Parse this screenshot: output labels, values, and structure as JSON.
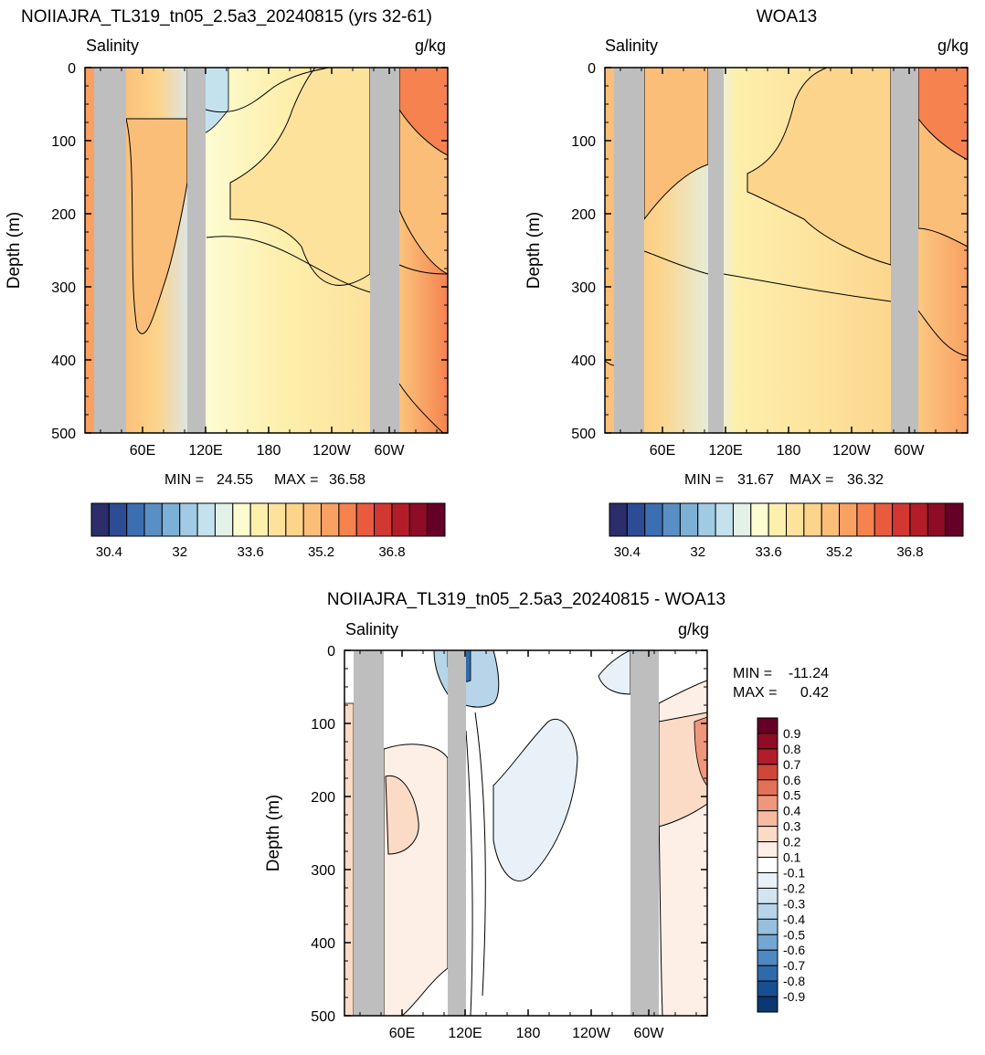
{
  "chart_data": [
    {
      "type": "contour",
      "title": "NOIIAJRA_TL319_tn05_2.5a3_20240815 (yrs 32-61)",
      "left_label": "Salinity",
      "right_label": "g/kg",
      "ylabel": "Depth (m)",
      "ylim": [
        0,
        500
      ],
      "y_reversed": true,
      "y_ticks": [
        "0",
        "100",
        "200",
        "300",
        "400",
        "500"
      ],
      "x_ticks": [
        "60E",
        "120E",
        "180",
        "120W",
        "60W"
      ],
      "min_label": "MIN =",
      "min_value": "24.55",
      "max_label": "MAX =",
      "max_value": "36.58",
      "colorbar_labels": [
        "30.4",
        "32",
        "33.6",
        "35.2",
        "36.8"
      ]
    },
    {
      "type": "contour",
      "title": "WOA13",
      "left_label": "Salinity",
      "right_label": "g/kg",
      "ylabel": "Depth (m)",
      "ylim": [
        0,
        500
      ],
      "y_reversed": true,
      "y_ticks": [
        "0",
        "100",
        "200",
        "300",
        "400",
        "500"
      ],
      "x_ticks": [
        "60E",
        "120E",
        "180",
        "120W",
        "60W"
      ],
      "min_label": "MIN =",
      "min_value": "31.67",
      "max_label": "MAX =",
      "max_value": "36.32",
      "colorbar_labels": [
        "30.4",
        "32",
        "33.6",
        "35.2",
        "36.8"
      ]
    },
    {
      "type": "contour",
      "title": "NOIIAJRA_TL319_tn05_2.5a3_20240815 - WOA13",
      "left_label": "Salinity",
      "right_label": "g/kg",
      "ylabel": "Depth (m)",
      "ylim": [
        0,
        500
      ],
      "y_reversed": true,
      "y_ticks": [
        "0",
        "100",
        "200",
        "300",
        "400",
        "500"
      ],
      "x_ticks": [
        "60E",
        "120E",
        "180",
        "120W",
        "60W"
      ],
      "min_label": "MIN =",
      "min_value": "-11.24",
      "max_label": "MAX =",
      "max_value": "0.42",
      "colorbar_labels": [
        "0.9",
        "0.8",
        "0.7",
        "0.6",
        "0.5",
        "0.4",
        "0.3",
        "0.2",
        "0.1",
        "-0.1",
        "-0.2",
        "-0.3",
        "-0.4",
        "-0.5",
        "-0.6",
        "-0.7",
        "-0.8",
        "-0.9"
      ]
    }
  ],
  "colors": {
    "land_mask": "#bebebe",
    "abs_palette": [
      "#2c2d6b",
      "#2c4d93",
      "#3b6fb1",
      "#5a8fc6",
      "#7db0d6",
      "#a0cbe2",
      "#c3e2ee",
      "#e3f1e6",
      "#fdfbd0",
      "#fdefac",
      "#fde29c",
      "#fcd48b",
      "#fbbe79",
      "#f9a063",
      "#f5824f",
      "#e85b3e",
      "#d23731",
      "#b31d2a",
      "#8e0c26",
      "#650027"
    ],
    "diff_palette": [
      "#650027",
      "#8e0c26",
      "#b31d2a",
      "#cf4739",
      "#e27158",
      "#ee977c",
      "#f6bba0",
      "#fbdac6",
      "#fdefe5",
      "#ffffff",
      "#e8f1f8",
      "#d2e4f0",
      "#b7d4e8",
      "#97c0de",
      "#73a6d1",
      "#4f89c1",
      "#2f6aab",
      "#174f92",
      "#0a3972"
    ]
  }
}
